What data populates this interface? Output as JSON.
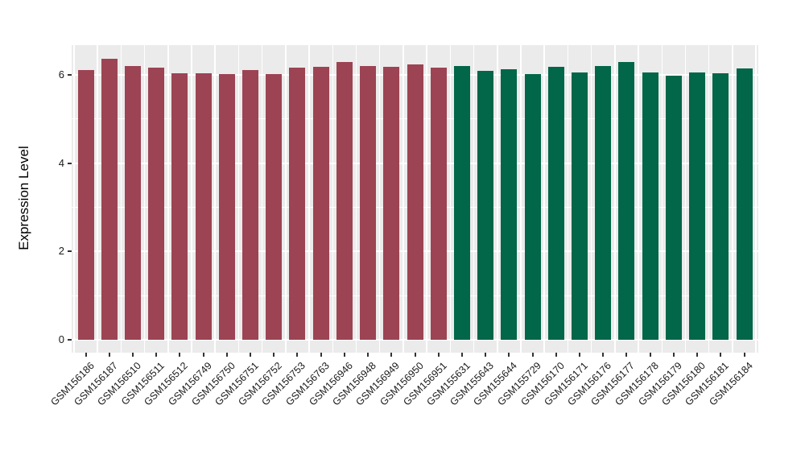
{
  "chart_data": {
    "type": "bar",
    "title": "",
    "xlabel": "",
    "ylabel": "Expression Level",
    "ylim": [
      0,
      6.68
    ],
    "yticks": [
      "0",
      "2",
      "4",
      "6"
    ],
    "yticks_minor": [
      1,
      3,
      5
    ],
    "grid": "on",
    "legend": "none",
    "panel_bg": "#EBEBEB",
    "grid_color": "#FFFFFF",
    "groups": [
      {
        "name": "group-1",
        "color": "#9C4453"
      },
      {
        "name": "group-2",
        "color": "#026649"
      }
    ],
    "categories": [
      "GSM156186",
      "GSM156187",
      "GSM156510",
      "GSM156511",
      "GSM156512",
      "GSM156749",
      "GSM156750",
      "GSM156751",
      "GSM156752",
      "GSM156753",
      "GSM156763",
      "GSM156946",
      "GSM156948",
      "GSM156949",
      "GSM156950",
      "GSM156951",
      "GSM155631",
      "GSM155643",
      "GSM155644",
      "GSM155729",
      "GSM156170",
      "GSM156171",
      "GSM156176",
      "GSM156177",
      "GSM156178",
      "GSM156179",
      "GSM156180",
      "GSM156181",
      "GSM156184"
    ],
    "bars": [
      {
        "label": "GSM156186",
        "value": 6.11,
        "group": 0
      },
      {
        "label": "GSM156187",
        "value": 6.37,
        "group": 0
      },
      {
        "label": "GSM156510",
        "value": 6.21,
        "group": 0
      },
      {
        "label": "GSM156511",
        "value": 6.16,
        "group": 0
      },
      {
        "label": "GSM156512",
        "value": 6.04,
        "group": 0
      },
      {
        "label": "GSM156749",
        "value": 6.04,
        "group": 0
      },
      {
        "label": "GSM156750",
        "value": 6.02,
        "group": 0
      },
      {
        "label": "GSM156751",
        "value": 6.11,
        "group": 0
      },
      {
        "label": "GSM156752",
        "value": 6.02,
        "group": 0
      },
      {
        "label": "GSM156753",
        "value": 6.16,
        "group": 0
      },
      {
        "label": "GSM156763",
        "value": 6.18,
        "group": 0
      },
      {
        "label": "GSM156946",
        "value": 6.3,
        "group": 0
      },
      {
        "label": "GSM156948",
        "value": 6.2,
        "group": 0
      },
      {
        "label": "GSM156949",
        "value": 6.18,
        "group": 0
      },
      {
        "label": "GSM156950",
        "value": 6.24,
        "group": 0
      },
      {
        "label": "GSM156951",
        "value": 6.17,
        "group": 0
      },
      {
        "label": "GSM155631",
        "value": 6.2,
        "group": 1
      },
      {
        "label": "GSM155643",
        "value": 6.09,
        "group": 1
      },
      {
        "label": "GSM155644",
        "value": 6.12,
        "group": 1
      },
      {
        "label": "GSM155729",
        "value": 6.02,
        "group": 1
      },
      {
        "label": "GSM156170",
        "value": 6.18,
        "group": 1
      },
      {
        "label": "GSM156171",
        "value": 6.06,
        "group": 1
      },
      {
        "label": "GSM156176",
        "value": 6.2,
        "group": 1
      },
      {
        "label": "GSM156177",
        "value": 6.3,
        "group": 1
      },
      {
        "label": "GSM156178",
        "value": 6.06,
        "group": 1
      },
      {
        "label": "GSM156179",
        "value": 5.98,
        "group": 1
      },
      {
        "label": "GSM156180",
        "value": 6.06,
        "group": 1
      },
      {
        "label": "GSM156181",
        "value": 6.03,
        "group": 1
      },
      {
        "label": "GSM156184",
        "value": 6.15,
        "group": 1
      }
    ]
  }
}
